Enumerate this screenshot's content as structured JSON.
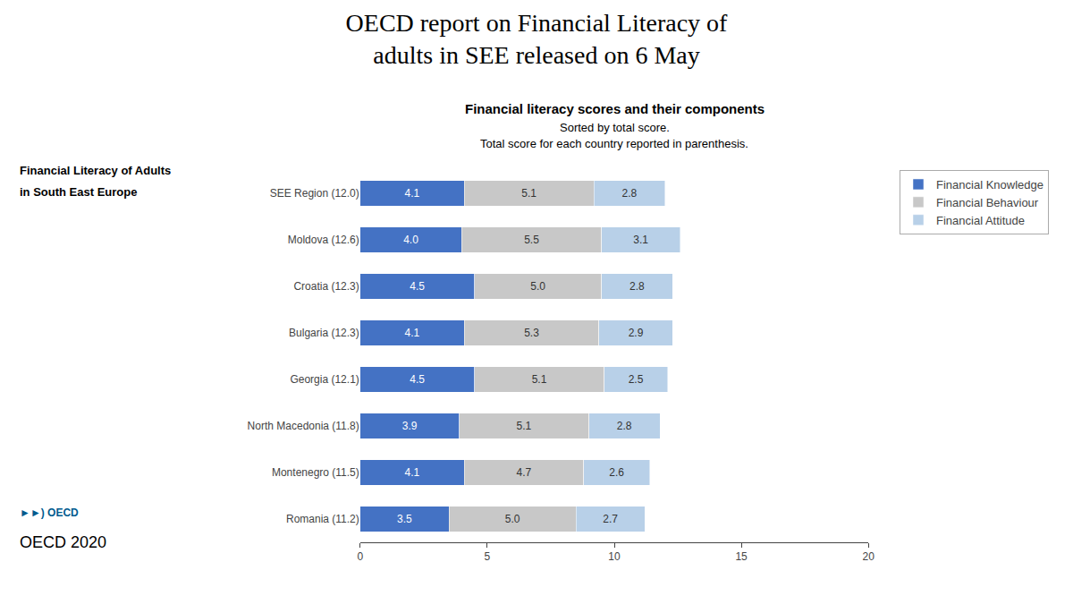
{
  "chart_data": {
    "type": "bar",
    "orientation": "horizontal",
    "stacked": true,
    "data_labels": true,
    "grid": false,
    "legend": "right",
    "title": [
      "OECD report on Financial Literacy of",
      "adults in SEE released on 6 May"
    ],
    "subtitle": [
      "Financial literacy scores and their components",
      "Sorted by total score.",
      "Total score for each country reported in parenthesis."
    ],
    "annotations": [
      "Financial Literacy of Adults",
      "in South East Europe",
      "►►) OECD",
      "OECD 2020"
    ],
    "categories": [
      "SEE Region (12.0)",
      "Moldova (12.6)",
      "Croatia (12.3)",
      "Bulgaria (12.3)",
      "Georgia (12.1)",
      "North Macedonia (11.8)",
      "Montenegro (11.5)",
      "Romania (11.2)"
    ],
    "series": [
      {
        "name": "Financial Knowledge",
        "color": "#4472C4",
        "values": [
          4.1,
          4.0,
          4.5,
          4.1,
          4.5,
          3.9,
          4.1,
          3.5
        ],
        "value_labels": [
          "4.1",
          "4.0",
          "4.5",
          "4.1",
          "4.5",
          "3.9",
          "4.1",
          "3.5"
        ]
      },
      {
        "name": "Financial Behaviour",
        "color": "#C8C8C8",
        "values": [
          5.1,
          5.5,
          5.0,
          5.3,
          5.1,
          5.1,
          4.7,
          5.0
        ],
        "value_labels": [
          "5.1",
          "5.5",
          "5.0",
          "5.3",
          "5.1",
          "5.1",
          "4.7",
          "5.0"
        ]
      },
      {
        "name": "Financial Attitude",
        "color": "#B8D0E8",
        "values": [
          2.8,
          3.1,
          2.8,
          2.9,
          2.5,
          2.8,
          2.6,
          2.7
        ],
        "value_labels": [
          "2.8",
          "3.1",
          "2.8",
          "2.9",
          "2.5",
          "2.8",
          "2.6",
          "2.7"
        ]
      }
    ],
    "xlim": [
      0,
      20
    ],
    "xticks": [
      0,
      5,
      10,
      15,
      20
    ]
  }
}
